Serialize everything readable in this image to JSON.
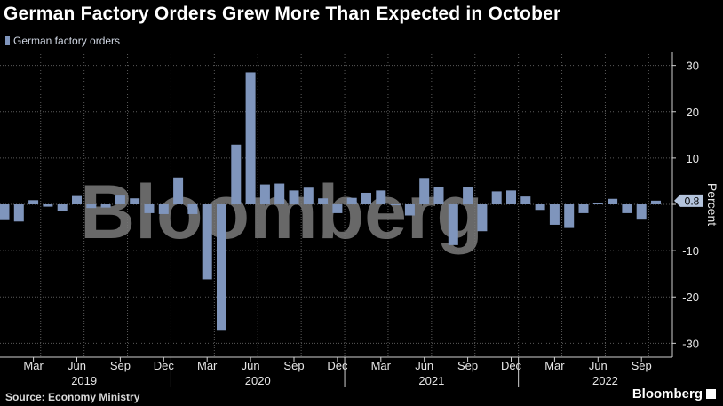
{
  "title": "German Factory Orders Grew More Than Expected in October",
  "legend_label": "German factory orders",
  "source": "Source: Economy Ministry",
  "brand": "Bloomberg",
  "watermark": "Bloomberg",
  "colors": {
    "background": "#000000",
    "bar": "#7f95bc",
    "grid": "#5a5a5a",
    "tag": "#b3c3dc"
  },
  "chart_data": {
    "type": "bar",
    "title": "German Factory Orders Grew More Than Expected in October",
    "ylabel": "Percent",
    "ylim": [
      -33,
      33
    ],
    "yticks": [
      30,
      20,
      10,
      0,
      -10,
      -20,
      -30
    ],
    "ytick_labels": [
      "30",
      "20",
      "10",
      "",
      "-10",
      "-20",
      "-30"
    ],
    "last_value_label": "0.8",
    "month_ticks": [
      "Mar",
      "Jun",
      "Sep",
      "Dec",
      "Mar",
      "Jun",
      "Sep",
      "Dec",
      "Mar",
      "Jun",
      "Sep",
      "Dec",
      "Mar",
      "Jun",
      "Sep"
    ],
    "year_labels": [
      "2019",
      "2020",
      "2021",
      "2022"
    ],
    "series": [
      {
        "name": "German factory orders",
        "categories": [
          "Jan 2019",
          "Feb 2019",
          "Mar 2019",
          "Apr 2019",
          "May 2019",
          "Jun 2019",
          "Jul 2019",
          "Aug 2019",
          "Sep 2019",
          "Oct 2019",
          "Nov 2019",
          "Dec 2019",
          "Jan 2020",
          "Feb 2020",
          "Mar 2020",
          "Apr 2020",
          "May 2020",
          "Jun 2020",
          "Jul 2020",
          "Aug 2020",
          "Sep 2020",
          "Oct 2020",
          "Nov 2020",
          "Dec 2020",
          "Jan 2021",
          "Feb 2021",
          "Mar 2021",
          "Apr 2021",
          "May 2021",
          "Jun 2021",
          "Jul 2021",
          "Aug 2021",
          "Sep 2021",
          "Oct 2021",
          "Nov 2021",
          "Dec 2021",
          "Jan 2022",
          "Feb 2022",
          "Mar 2022",
          "Apr 2022",
          "May 2022",
          "Jun 2022",
          "Jul 2022",
          "Aug 2022",
          "Sep 2022",
          "Oct 2022"
        ],
        "values": [
          -3.4,
          -3.7,
          0.9,
          -0.5,
          -1.4,
          1.8,
          -0.8,
          -0.7,
          1.9,
          1.3,
          -1.9,
          -2.1,
          5.8,
          -2.1,
          -16.2,
          -27.3,
          12.9,
          28.5,
          4.3,
          4.5,
          3.0,
          3.6,
          1.3,
          -1.9,
          1.4,
          2.5,
          3.0,
          -0.2,
          -2.4,
          5.7,
          3.7,
          -8.8,
          3.7,
          -5.8,
          2.8,
          3.0,
          1.7,
          -1.2,
          -4.4,
          -5.1,
          -1.9,
          0.2,
          1.2,
          -1.9,
          -3.3,
          0.8
        ]
      }
    ]
  }
}
